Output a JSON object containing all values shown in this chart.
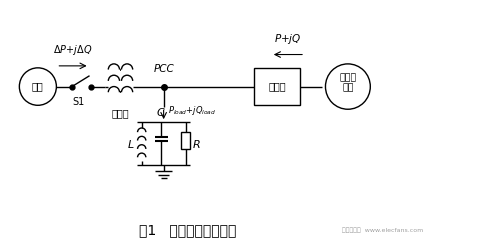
{
  "bg_color": "#ffffff",
  "line_color": "#000000",
  "title": "图1   孤岛检测系统模型",
  "title_fontsize": 10,
  "watermark": "电子发烧友  www.elecfans.com",
  "xlim": [
    0,
    10
  ],
  "ylim": [
    0,
    5
  ]
}
